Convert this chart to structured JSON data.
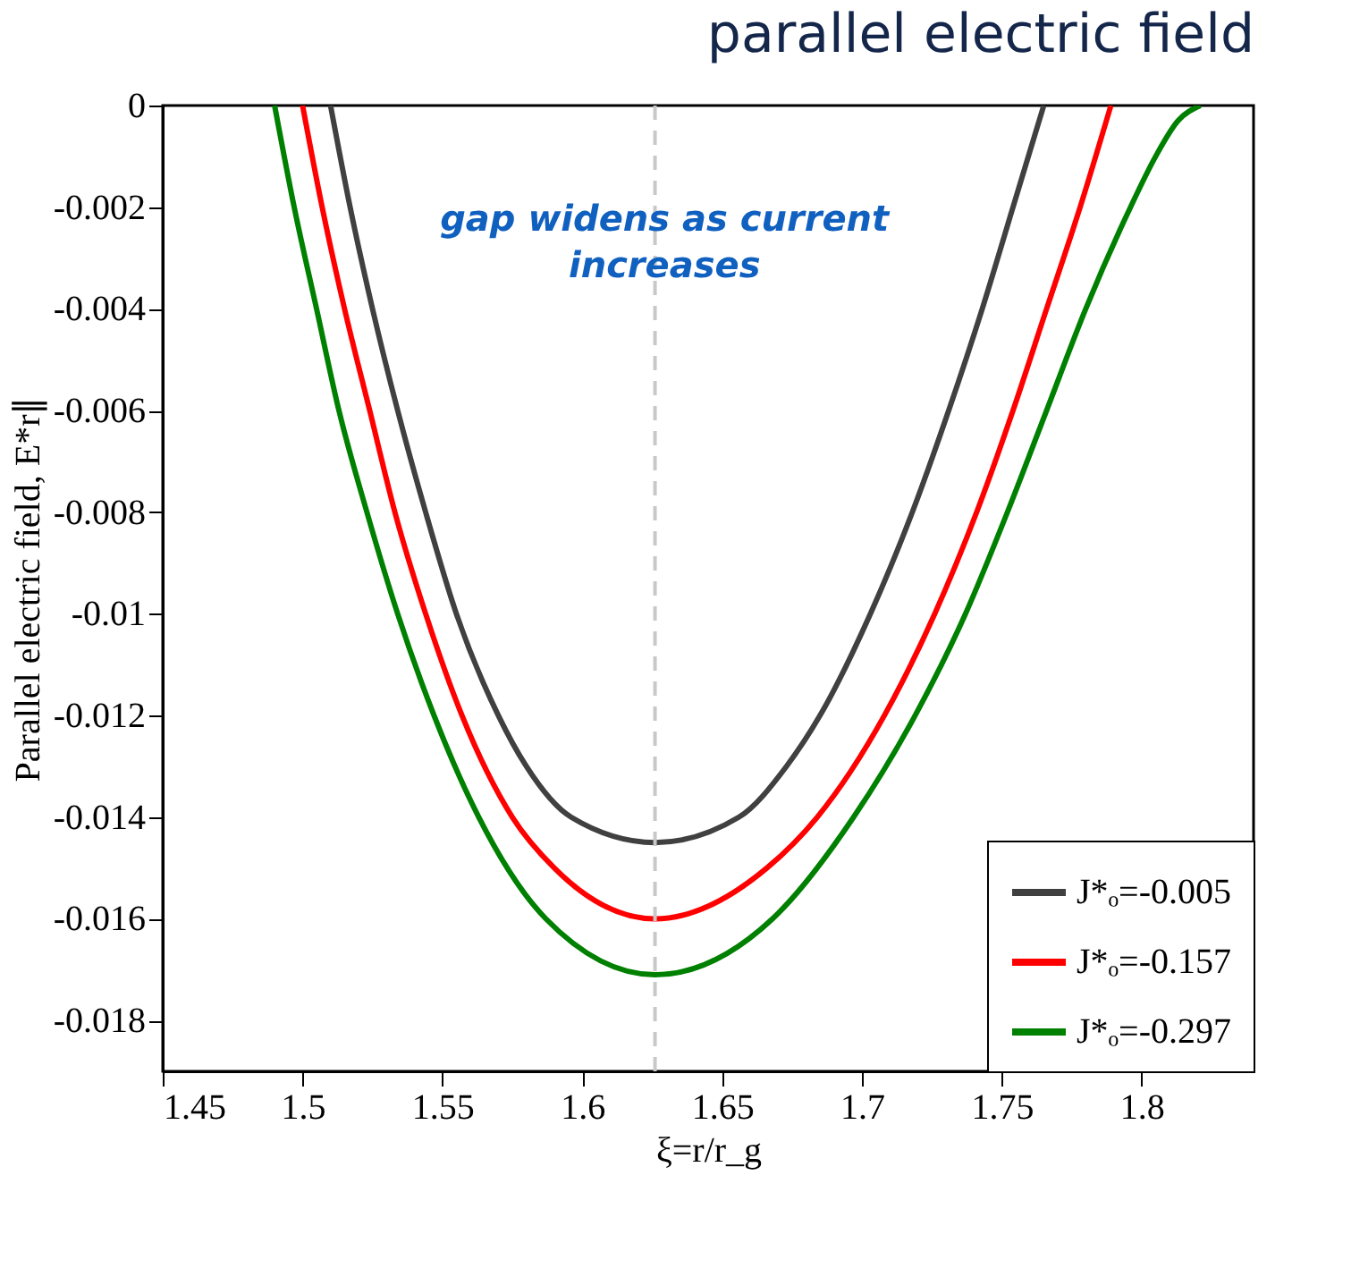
{
  "chart_data": {
    "type": "line",
    "title": "parallel electric field",
    "xlabel": "ξ=r/r_g",
    "ylabel": "Parallel electric field, E*r∥",
    "annotations": [
      "gap widens as current increases"
    ],
    "xlim": [
      1.45,
      1.84
    ],
    "xticks": [
      1.45,
      1.5,
      1.55,
      1.6,
      1.65,
      1.7,
      1.75,
      1.8
    ],
    "ylim": [
      -0.019,
      0
    ],
    "yticks": [
      0,
      -0.002,
      -0.004,
      -0.006,
      -0.008,
      -0.01,
      -0.012,
      -0.014,
      -0.016,
      -0.018
    ],
    "grid": false,
    "legend": "bottom right",
    "line_style": "solid",
    "ref_lines": [
      {
        "axis": "x",
        "value": 1.626,
        "color": "#c8c8c8",
        "line_style": "dashed"
      }
    ],
    "series": [
      {
        "name": "J*ₒ=-0.005",
        "color": "#404040",
        "x": [
          1.51,
          1.517,
          1.525,
          1.534,
          1.544,
          1.555,
          1.57,
          1.58,
          1.596,
          1.626,
          1.656,
          1.673,
          1.685,
          1.703,
          1.718,
          1.731,
          1.743,
          1.754,
          1.765
        ],
        "values": [
          0,
          -0.002,
          -0.004,
          -0.006,
          -0.008,
          -0.01,
          -0.012,
          -0.013,
          -0.014,
          -0.0145,
          -0.014,
          -0.013,
          -0.012,
          -0.01,
          -0.008,
          -0.006,
          -0.004,
          -0.002,
          0
        ]
      },
      {
        "name": "J*ₒ=-0.157",
        "color": "#ff0000",
        "x": [
          1.5,
          1.507,
          1.515,
          1.524,
          1.533,
          1.544,
          1.557,
          1.575,
          1.59,
          1.626,
          1.666,
          1.684,
          1.708,
          1.726,
          1.741,
          1.754,
          1.766,
          1.778,
          1.789
        ],
        "values": [
          0,
          -0.002,
          -0.004,
          -0.006,
          -0.008,
          -0.01,
          -0.012,
          -0.014,
          -0.015,
          -0.016,
          -0.015,
          -0.014,
          -0.012,
          -0.01,
          -0.008,
          -0.006,
          -0.004,
          -0.002,
          0
        ]
      },
      {
        "name": "J*ₒ=-0.297",
        "color": "#008000",
        "x": [
          1.49,
          1.497,
          1.505,
          1.513,
          1.523,
          1.534,
          1.547,
          1.563,
          1.587,
          1.626,
          1.668,
          1.697,
          1.719,
          1.737,
          1.752,
          1.766,
          1.78,
          1.796,
          1.805,
          1.813,
          1.821
        ],
        "values": [
          0,
          -0.002,
          -0.004,
          -0.006,
          -0.008,
          -0.01,
          -0.012,
          -0.014,
          -0.016,
          -0.0171,
          -0.016,
          -0.014,
          -0.012,
          -0.01,
          -0.008,
          -0.006,
          -0.004,
          -0.002,
          -0.001,
          -0.0003,
          0
        ]
      }
    ]
  }
}
